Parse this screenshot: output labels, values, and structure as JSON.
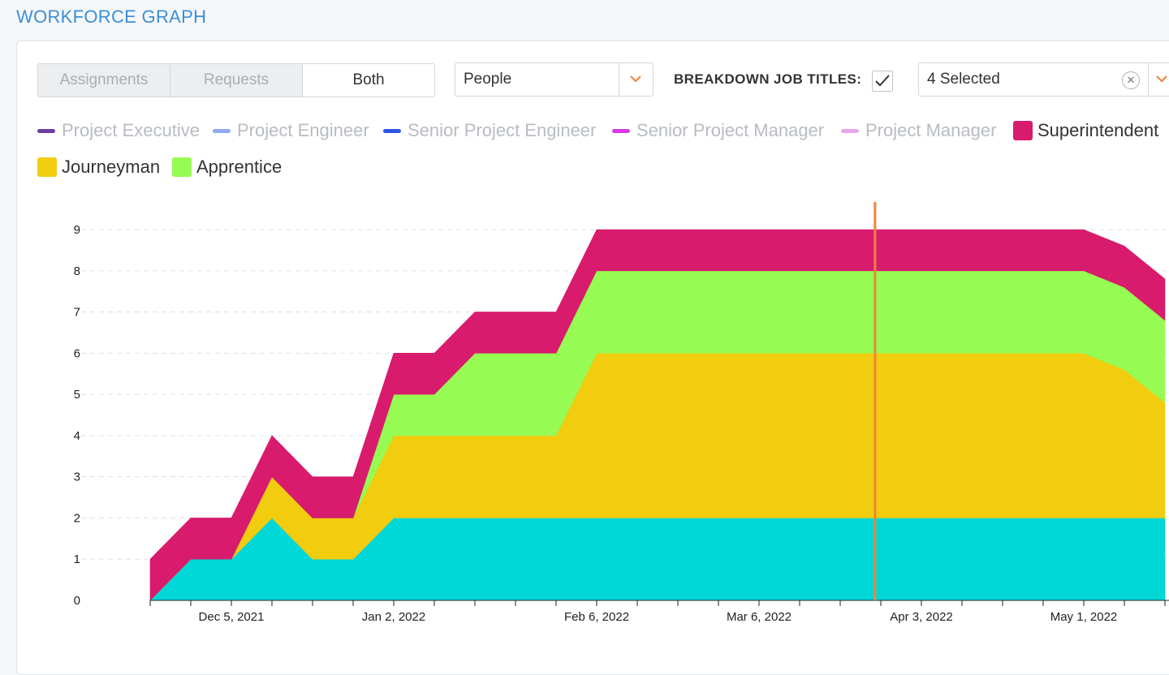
{
  "page": {
    "title": "WORKFORCE GRAPH"
  },
  "toolbar": {
    "segments": [
      {
        "label": "Assignments",
        "active": false
      },
      {
        "label": "Requests",
        "active": false
      },
      {
        "label": "Both",
        "active": true
      }
    ],
    "measure_select": {
      "value": "People",
      "icon": "chevron-down-icon"
    },
    "breakdown_label": "BREAKDOWN JOB TITLES:",
    "breakdown_checked": true,
    "job_title_select": {
      "value": "4 Selected",
      "clear_icon": "close-icon",
      "icon": "chevron-down-icon"
    }
  },
  "legend": [
    {
      "label": "Project Executive",
      "color": "#6b3fa0",
      "marker": "line",
      "active": false
    },
    {
      "label": "Project Engineer",
      "color": "#8fa9f2",
      "marker": "line",
      "active": false
    },
    {
      "label": "Senior Project Engineer",
      "color": "#2f55e4",
      "marker": "line",
      "active": false
    },
    {
      "label": "Senior Project Manager",
      "color": "#d63ce6",
      "marker": "line",
      "active": false
    },
    {
      "label": "Project Manager",
      "color": "#e9a6ec",
      "marker": "line",
      "active": false
    },
    {
      "label": "Superintendent",
      "color": "#d81b6c",
      "marker": "box",
      "active": true
    },
    {
      "label": "Journeyman",
      "color": "#f1cc0f",
      "marker": "box",
      "active": true
    },
    {
      "label": "Apprentice",
      "color": "#96fb52",
      "marker": "box",
      "active": true
    }
  ],
  "chart_data": {
    "type": "area",
    "stacked": true,
    "x_start": "Nov 21, 2021",
    "x_interval": "1 week",
    "x_tick_labels": [
      "Dec 5, 2021",
      "Jan 2, 2022",
      "Feb 6, 2022",
      "Mar 6, 2022",
      "Apr 3, 2022",
      "May 1, 2022"
    ],
    "ylim": [
      0,
      9
    ],
    "y_ticks": [
      0,
      1,
      2,
      3,
      4,
      5,
      6,
      7,
      8,
      9
    ],
    "grid": "horizontal dashed",
    "series": [
      {
        "color": "#00d8d8",
        "values": [
          0,
          1,
          1,
          2,
          1,
          1,
          2,
          2,
          2,
          2,
          2,
          2,
          2,
          2,
          2,
          2,
          2,
          2,
          2,
          2,
          2,
          2,
          2,
          2,
          2.0,
          2.0
        ]
      },
      {
        "name": "Journeyman",
        "color": "#f1cc0f",
        "values": [
          0,
          0,
          0,
          1,
          1,
          1,
          2,
          2,
          2,
          2,
          2,
          4,
          4,
          4,
          4,
          4,
          4,
          4,
          4,
          4,
          4,
          4,
          4,
          4,
          3.6,
          2.8
        ]
      },
      {
        "name": "Apprentice",
        "color": "#96fb52",
        "values": [
          0,
          0,
          0,
          0,
          0,
          0,
          1,
          1,
          2,
          2,
          2,
          2,
          2,
          2,
          2,
          2,
          2,
          2,
          2,
          2,
          2,
          2,
          2,
          2,
          2.0,
          2.0
        ]
      },
      {
        "name": "Superintendent",
        "color": "#d81b6c",
        "values": [
          1,
          1,
          1,
          1,
          1,
          1,
          1,
          1,
          1,
          1,
          1,
          1,
          1,
          1,
          1,
          1,
          1,
          1,
          1,
          1,
          1,
          1,
          1,
          1,
          1.0,
          1.0
        ]
      }
    ],
    "current_date_marker": {
      "x": "Mar 26, 2022",
      "color": "#f2843a"
    }
  }
}
